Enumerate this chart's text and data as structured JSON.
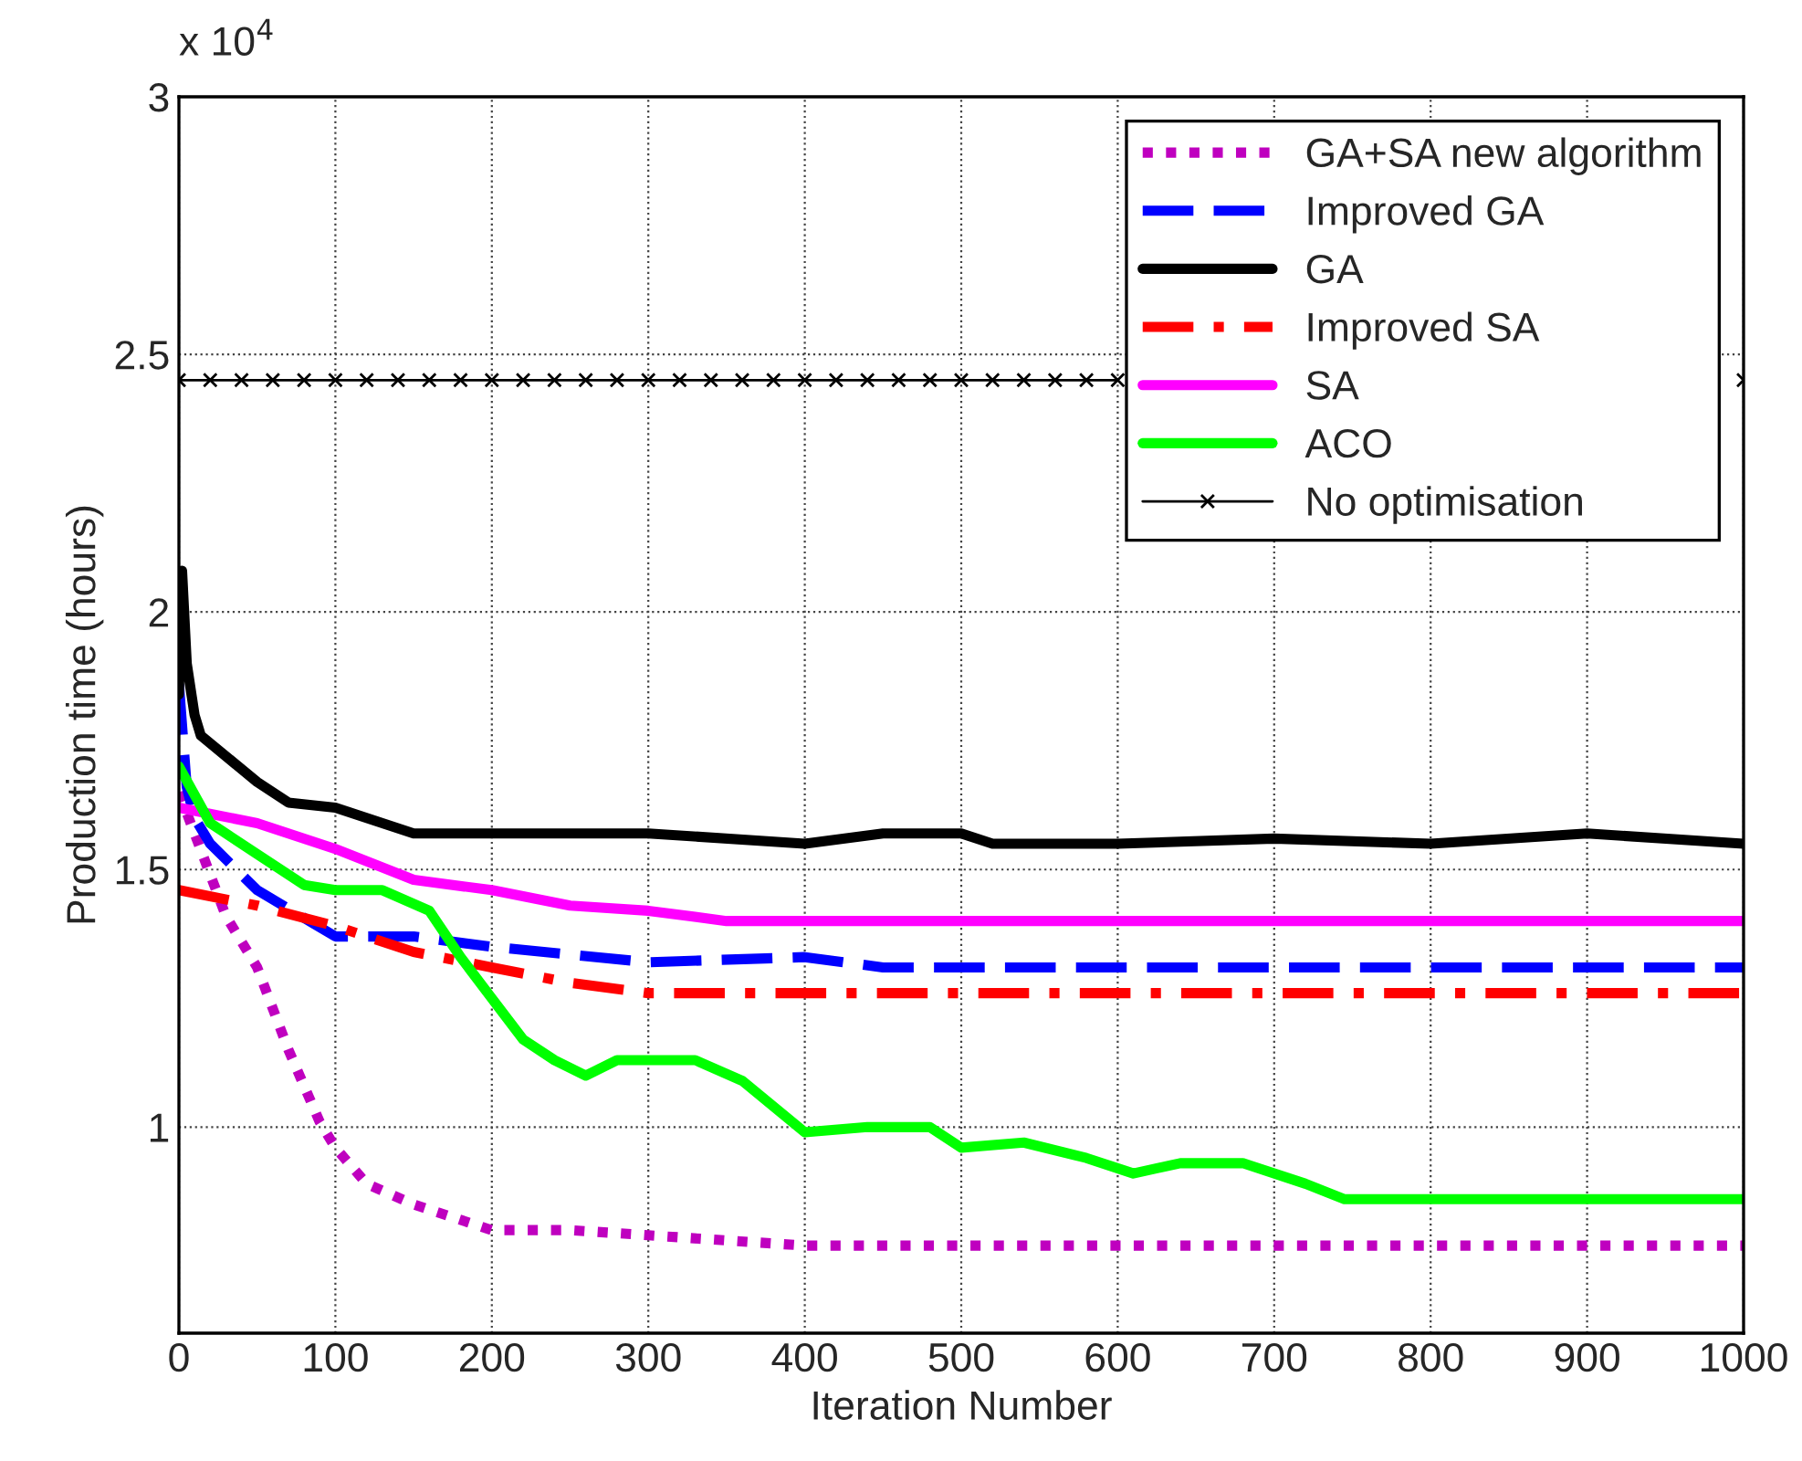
{
  "chart_data": {
    "type": "line",
    "xlabel": "Iteration Number",
    "ylabel": "Production time (hours)",
    "annotations": [
      "x 10$^{4}$"
    ],
    "xlim": [
      0,
      1000
    ],
    "xticks": [
      0,
      100,
      200,
      300,
      400,
      500,
      600,
      700,
      800,
      900,
      1000
    ],
    "ylim": [
      0.6,
      3
    ],
    "yticks": [
      1,
      1.5,
      2,
      2.5,
      3
    ],
    "grid": true,
    "legend": "top right",
    "series": [
      {
        "name": "GA+SA new algorithm",
        "color": "#bf00bf",
        "line_style": "dotted",
        "marker": "none",
        "x": [
          0,
          10,
          30,
          50,
          70,
          90,
          100,
          120,
          150,
          200,
          250,
          300,
          400,
          500,
          1000
        ],
        "values": [
          1.65,
          1.57,
          1.41,
          1.31,
          1.15,
          1.01,
          0.96,
          0.89,
          0.85,
          0.8,
          0.8,
          0.79,
          0.77,
          0.77,
          0.77
        ]
      },
      {
        "name": "Improved GA",
        "color": "#0000ff",
        "line_style": "dashed",
        "marker": "none",
        "x": [
          0,
          5,
          10,
          20,
          50,
          100,
          150,
          200,
          300,
          400,
          450,
          500,
          1000
        ],
        "values": [
          1.86,
          1.66,
          1.6,
          1.55,
          1.46,
          1.37,
          1.37,
          1.35,
          1.32,
          1.33,
          1.31,
          1.31,
          1.31
        ]
      },
      {
        "name": "GA",
        "color": "#000000",
        "line_style": "solid",
        "marker": "none",
        "x": [
          0,
          2,
          5,
          10,
          14,
          50,
          70,
          100,
          150,
          200,
          300,
          400,
          450,
          500,
          520,
          600,
          700,
          800,
          900,
          1000
        ],
        "values": [
          1.84,
          2.08,
          1.9,
          1.8,
          1.76,
          1.67,
          1.63,
          1.62,
          1.57,
          1.57,
          1.57,
          1.55,
          1.57,
          1.57,
          1.55,
          1.55,
          1.56,
          1.55,
          1.57,
          1.55
        ]
      },
      {
        "name": "Improved SA",
        "color": "#ff0000",
        "line_style": "dashdot",
        "marker": "none",
        "x": [
          0,
          50,
          100,
          150,
          200,
          250,
          300,
          1000
        ],
        "values": [
          1.46,
          1.43,
          1.39,
          1.34,
          1.31,
          1.28,
          1.26,
          1.26
        ]
      },
      {
        "name": "SA",
        "color": "#ff00ff",
        "line_style": "solid",
        "marker": "none",
        "x": [
          0,
          50,
          100,
          150,
          200,
          250,
          300,
          350,
          1000
        ],
        "values": [
          1.62,
          1.59,
          1.54,
          1.48,
          1.46,
          1.43,
          1.42,
          1.4,
          1.4
        ]
      },
      {
        "name": "ACO",
        "color": "#00ff00",
        "line_style": "solid",
        "marker": "none",
        "x": [
          0,
          20,
          50,
          80,
          100,
          130,
          160,
          180,
          200,
          220,
          240,
          260,
          280,
          330,
          360,
          400,
          440,
          480,
          500,
          540,
          580,
          610,
          640,
          680,
          720,
          745,
          1000
        ],
        "values": [
          1.7,
          1.59,
          1.53,
          1.47,
          1.46,
          1.46,
          1.42,
          1.33,
          1.25,
          1.17,
          1.13,
          1.1,
          1.13,
          1.13,
          1.09,
          0.99,
          1.0,
          1.0,
          0.96,
          0.97,
          0.94,
          0.91,
          0.93,
          0.93,
          0.89,
          0.86,
          0.86
        ]
      },
      {
        "name": "No optimisation",
        "color": "#000000",
        "line_style": "solid",
        "marker": "cross",
        "x": [
          0,
          20,
          40,
          60,
          80,
          100,
          120,
          140,
          160,
          180,
          200,
          220,
          240,
          260,
          280,
          300,
          320,
          340,
          360,
          380,
          400,
          420,
          440,
          460,
          480,
          500,
          520,
          540,
          560,
          580,
          600,
          620,
          640,
          660,
          680,
          700,
          720,
          740,
          760,
          780,
          800,
          820,
          840,
          860,
          880,
          900,
          920,
          940,
          960,
          980,
          1000
        ],
        "values": [
          2.45,
          2.45,
          2.45,
          2.45,
          2.45,
          2.45,
          2.45,
          2.45,
          2.45,
          2.45,
          2.45,
          2.45,
          2.45,
          2.45,
          2.45,
          2.45,
          2.45,
          2.45,
          2.45,
          2.45,
          2.45,
          2.45,
          2.45,
          2.45,
          2.45,
          2.45,
          2.45,
          2.45,
          2.45,
          2.45,
          2.45,
          null,
          null,
          null,
          null,
          null,
          null,
          null,
          null,
          null,
          null,
          null,
          null,
          null,
          null,
          null,
          null,
          null,
          null,
          null,
          2.45
        ]
      }
    ]
  }
}
